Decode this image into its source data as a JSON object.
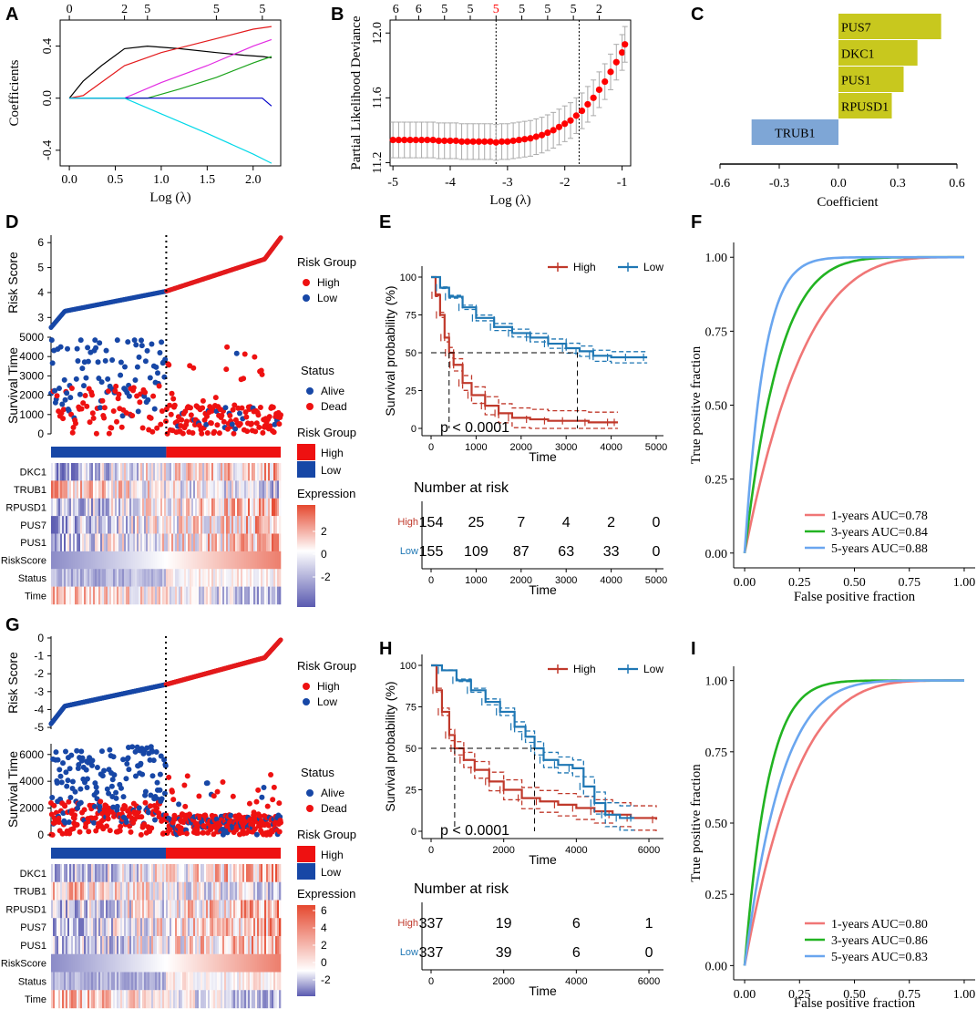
{
  "figure": {
    "colors": {
      "red": "#e31a1c",
      "blue": "#1747a6",
      "km_red": "#c0392b",
      "km_blue": "#1f77b4",
      "olive": "#c8c81e",
      "steelblue": "#7ea6d6",
      "roc1": "#f07676",
      "roc3": "#22b322",
      "roc5": "#6aa6ef",
      "grey": "#aaaaaa",
      "heat_low": "#5a5ab0",
      "heat_mid": "#ffffff",
      "heat_high": "#e5482f"
    },
    "panel_labels": [
      "A",
      "B",
      "C",
      "D",
      "E",
      "F",
      "G",
      "H",
      "I"
    ]
  },
  "chart_data": [
    {
      "panel": "A",
      "type": "line",
      "title": "",
      "xlabel": "Log (λ)",
      "ylabel": "Coefficients",
      "xlim": [
        -0.1,
        2.3
      ],
      "ylim": [
        -0.52,
        0.6
      ],
      "xticks": [
        "0.0",
        "0.5",
        "1.0",
        "1.5",
        "2.0"
      ],
      "xtick_values": [
        0,
        0.5,
        1.0,
        1.5,
        2.0
      ],
      "yticks": [
        "-0.4",
        "0.0",
        "0.4"
      ],
      "ytick_values": [
        -0.4,
        0,
        0.4
      ],
      "top_ticks": [
        "0",
        "2",
        "5",
        "5",
        "5"
      ],
      "top_tick_values": [
        0,
        0.6,
        0.85,
        1.6,
        2.1
      ],
      "series": [
        {
          "name": "black",
          "color": "#000000",
          "x": [
            0,
            0.15,
            0.35,
            0.6,
            0.85,
            1.2,
            1.6,
            1.9,
            2.1,
            2.2
          ],
          "y": [
            0,
            0.13,
            0.25,
            0.38,
            0.4,
            0.38,
            0.35,
            0.33,
            0.32,
            0.31
          ]
        },
        {
          "name": "red",
          "color": "#e31a1c",
          "x": [
            0,
            0.15,
            0.6,
            1.0,
            1.5,
            2.0,
            2.2
          ],
          "y": [
            0,
            0.02,
            0.25,
            0.35,
            0.44,
            0.53,
            0.55
          ]
        },
        {
          "name": "magenta",
          "color": "#e22ae2",
          "x": [
            0,
            0.6,
            1.0,
            1.5,
            2.0,
            2.2
          ],
          "y": [
            0,
            0,
            0.12,
            0.25,
            0.4,
            0.45
          ]
        },
        {
          "name": "green",
          "color": "#1aa31a",
          "x": [
            0,
            0.85,
            1.2,
            1.6,
            2.0,
            2.2
          ],
          "y": [
            0,
            0,
            0.07,
            0.16,
            0.27,
            0.32
          ]
        },
        {
          "name": "blue",
          "color": "#0000c8",
          "x": [
            0,
            2.1,
            2.2
          ],
          "y": [
            0,
            0,
            -0.06
          ]
        },
        {
          "name": "cyan",
          "color": "#00d8e8",
          "x": [
            0,
            0.6,
            1.0,
            1.5,
            2.0,
            2.2
          ],
          "y": [
            0,
            0,
            -0.12,
            -0.27,
            -0.43,
            -0.5
          ]
        }
      ]
    },
    {
      "panel": "B",
      "type": "scatter",
      "title": "",
      "xlabel": "Log (λ)",
      "ylabel": "Partial Likelihood Deviance",
      "xlim": [
        -5.05,
        -0.85
      ],
      "ylim": [
        11.18,
        12.08
      ],
      "xticks": [
        "-5",
        "-4",
        "-3",
        "-2",
        "-1"
      ],
      "xtick_values": [
        -5,
        -4,
        -3,
        -2,
        -1
      ],
      "yticks": [
        "11.2",
        "11.6",
        "12.0"
      ],
      "ytick_values": [
        11.2,
        11.6,
        12.0
      ],
      "top_ticks": [
        "6",
        "6",
        "5",
        "5",
        "5",
        "5",
        "5",
        "5",
        "2"
      ],
      "top_tick_values": [
        -4.95,
        -4.55,
        -4.1,
        -3.65,
        -3.2,
        -2.75,
        -2.3,
        -1.85,
        -1.4
      ],
      "top_tick_highlight_index": 4,
      "vlines": [
        -3.2,
        -1.75
      ],
      "x": [
        -5,
        -4.9,
        -4.8,
        -4.7,
        -4.6,
        -4.5,
        -4.4,
        -4.3,
        -4.2,
        -4.1,
        -4.0,
        -3.9,
        -3.8,
        -3.7,
        -3.6,
        -3.5,
        -3.4,
        -3.3,
        -3.2,
        -3.1,
        -3.0,
        -2.9,
        -2.8,
        -2.7,
        -2.6,
        -2.5,
        -2.4,
        -2.3,
        -2.2,
        -2.1,
        -2.0,
        -1.9,
        -1.8,
        -1.7,
        -1.6,
        -1.5,
        -1.4,
        -1.3,
        -1.2,
        -1.1,
        -1.0,
        -0.95
      ],
      "y": [
        11.34,
        11.34,
        11.34,
        11.34,
        11.34,
        11.34,
        11.34,
        11.34,
        11.335,
        11.335,
        11.335,
        11.335,
        11.33,
        11.33,
        11.33,
        11.33,
        11.33,
        11.33,
        11.325,
        11.33,
        11.33,
        11.335,
        11.34,
        11.345,
        11.35,
        11.36,
        11.37,
        11.385,
        11.4,
        11.42,
        11.44,
        11.46,
        11.49,
        11.52,
        11.56,
        11.6,
        11.65,
        11.7,
        11.76,
        11.82,
        11.88,
        11.93
      ],
      "err": [
        0.11,
        0.11,
        0.11,
        0.11,
        0.11,
        0.11,
        0.11,
        0.11,
        0.11,
        0.11,
        0.11,
        0.11,
        0.11,
        0.11,
        0.11,
        0.11,
        0.11,
        0.11,
        0.11,
        0.11,
        0.11,
        0.11,
        0.11,
        0.11,
        0.11,
        0.11,
        0.11,
        0.11,
        0.11,
        0.11,
        0.11,
        0.11,
        0.11,
        0.11,
        0.11,
        0.11,
        0.11,
        0.11,
        0.11,
        0.11,
        0.11,
        0.11
      ]
    },
    {
      "panel": "C",
      "type": "bar",
      "orientation": "horizontal",
      "xlabel": "Coefficient",
      "xlim": [
        -0.6,
        0.6
      ],
      "xticks": [
        "-0.6",
        "-0.3",
        "0.0",
        "0.3",
        "0.6"
      ],
      "xtick_values": [
        -0.6,
        -0.3,
        0,
        0.3,
        0.6
      ],
      "categories": [
        "PUS7",
        "DKC1",
        "PUS1",
        "RPUSD1",
        "TRUB1"
      ],
      "values": [
        0.52,
        0.4,
        0.33,
        0.27,
        -0.44
      ]
    },
    {
      "panel": "D",
      "type": "scatter",
      "ylabel_top": "Risk Score",
      "ylabel_mid": "Survival Time",
      "risk_yticks": [
        "3",
        "4",
        "5",
        "6"
      ],
      "risk_ytick_values": [
        3,
        4,
        5,
        6
      ],
      "risk_ylim": [
        2.5,
        6.3
      ],
      "risk_range": [
        2.6,
        6.2
      ],
      "risk_cutoff": 4.05,
      "surv_yticks": [
        "0",
        "1000",
        "2000",
        "3000",
        "4000",
        "5000"
      ],
      "surv_ytick_values": [
        0,
        1000,
        2000,
        3000,
        4000,
        5000
      ],
      "surv_ylim": [
        0,
        5000
      ],
      "n": 309,
      "n_high": 154,
      "legend_risk_title": "Risk Group",
      "legend_risk": [
        "High",
        "Low"
      ],
      "legend_status_title": "Status",
      "legend_status": [
        "Alive",
        "Dead"
      ],
      "legend_group_title": "Risk Group",
      "legend_group": [
        "High",
        "Low"
      ],
      "legend_expr_title": "Expression",
      "legend_expr_ticks": [
        "2",
        "0",
        "-2"
      ],
      "heat_rows": [
        "DKC1",
        "TRUB1",
        "RPUSD1",
        "PUS7",
        "PUS1",
        "RiskScore",
        "Status",
        "Time"
      ]
    },
    {
      "panel": "E",
      "type": "line",
      "ylabel": "Survival probability (%)",
      "xlabel": "Time",
      "xlim": [
        0,
        5000
      ],
      "ylim": [
        0,
        100
      ],
      "xticks": [
        "0",
        "1000",
        "2000",
        "3000",
        "4000",
        "5000"
      ],
      "xtick_values": [
        0,
        1000,
        2000,
        3000,
        4000,
        5000
      ],
      "yticks": [
        "0",
        "25",
        "50",
        "75",
        "100"
      ],
      "ytick_values": [
        0,
        25,
        50,
        75,
        100
      ],
      "pvalue": "p < 0.0001",
      "legend": [
        "High",
        "Low"
      ],
      "median_high": 400,
      "median_low": 3250,
      "series": [
        {
          "name": "High",
          "x": [
            0,
            100,
            200,
            300,
            400,
            500,
            700,
            900,
            1200,
            1500,
            1800,
            2200,
            2600,
            3000,
            3500,
            4000,
            4150
          ],
          "y": [
            100,
            88,
            75,
            60,
            50,
            42,
            30,
            22,
            15,
            10,
            7,
            6,
            5,
            5,
            4,
            4,
            4
          ]
        },
        {
          "name": "Low",
          "x": [
            0,
            200,
            400,
            700,
            1000,
            1400,
            1800,
            2200,
            2600,
            3000,
            3300,
            3600,
            4000,
            4400,
            4800
          ],
          "y": [
            100,
            93,
            87,
            80,
            73,
            67,
            63,
            60,
            56,
            53,
            51,
            48,
            47,
            47,
            47
          ]
        }
      ],
      "risk_table_title": "Number at risk",
      "risk_table_times": [
        "0",
        "1000",
        "2000",
        "3000",
        "4000",
        "5000"
      ],
      "risk_table_time_values": [
        0,
        1000,
        2000,
        3000,
        4000,
        5000
      ],
      "risk_table": [
        {
          "group": "High",
          "counts": [
            "154",
            "25",
            "7",
            "4",
            "2",
            "0"
          ]
        },
        {
          "group": "Low",
          "counts": [
            "155",
            "109",
            "87",
            "63",
            "33",
            "0"
          ]
        }
      ]
    },
    {
      "panel": "F",
      "type": "line",
      "xlabel": "False positive fraction",
      "ylabel": "True positive fraction",
      "xticks": [
        "0.00",
        "0.25",
        "0.50",
        "0.75",
        "1.00"
      ],
      "xtick_values": [
        0,
        0.25,
        0.5,
        0.75,
        1
      ],
      "yticks": [
        "0.00",
        "0.25",
        "0.50",
        "0.75",
        "1.00"
      ],
      "ytick_values": [
        0,
        0.25,
        0.5,
        0.75,
        1
      ],
      "series": [
        {
          "name": "1-years",
          "label": "1-years  AUC=0.78",
          "auc": 0.78
        },
        {
          "name": "3-years",
          "label": "3-years  AUC=0.84",
          "auc": 0.84
        },
        {
          "name": "5-years",
          "label": "5-years  AUC=0.88",
          "auc": 0.88
        }
      ]
    },
    {
      "panel": "G",
      "type": "scatter",
      "ylabel_top": "Risk Score",
      "ylabel_mid": "Survival Time",
      "risk_yticks": [
        "0",
        "-1",
        "-2",
        "-3",
        "-4",
        "-5"
      ],
      "risk_ytick_values": [
        0,
        -1,
        -2,
        -3,
        -4,
        -5
      ],
      "risk_ylim": [
        -5.1,
        0.1
      ],
      "risk_range": [
        -4.8,
        -0.1
      ],
      "risk_cutoff": -2.6,
      "surv_yticks": [
        "0",
        "2000",
        "4000",
        "6000"
      ],
      "surv_ytick_values": [
        0,
        2000,
        4000,
        6000
      ],
      "surv_ylim": [
        0,
        6800
      ],
      "n": 674,
      "n_high": 337,
      "legend_risk_title": "Risk Group",
      "legend_risk": [
        "High",
        "Low"
      ],
      "legend_status_title": "Status",
      "legend_status": [
        "Alive",
        "Dead"
      ],
      "legend_group_title": "Risk Group",
      "legend_group": [
        "High",
        "Low"
      ],
      "legend_expr_title": "Expression",
      "legend_expr_ticks": [
        "6",
        "4",
        "2",
        "0",
        "-2"
      ],
      "heat_rows": [
        "DKC1",
        "TRUB1",
        "RPUSD1",
        "PUS7",
        "PUS1",
        "RiskScore",
        "Status",
        "Time"
      ]
    },
    {
      "panel": "H",
      "type": "line",
      "ylabel": "Survival probability (%)",
      "xlabel": "Time",
      "xlim": [
        0,
        6200
      ],
      "ylim": [
        0,
        100
      ],
      "xticks": [
        "0",
        "2000",
        "4000",
        "6000"
      ],
      "xtick_values": [
        0,
        2000,
        4000,
        6000
      ],
      "yticks": [
        "0",
        "25",
        "50",
        "75",
        "100"
      ],
      "ytick_values": [
        0,
        25,
        50,
        75,
        100
      ],
      "pvalue": "p < 0.0001",
      "legend": [
        "High",
        "Low"
      ],
      "median_high": 650,
      "median_low": 2850,
      "series": [
        {
          "name": "High",
          "x": [
            0,
            150,
            300,
            500,
            650,
            900,
            1200,
            1600,
            2000,
            2500,
            3000,
            3500,
            4000,
            4500,
            5000,
            5500,
            6200
          ],
          "y": [
            100,
            85,
            72,
            58,
            50,
            43,
            37,
            30,
            25,
            20,
            18,
            16,
            14,
            12,
            10,
            8,
            7
          ]
        },
        {
          "name": "Low",
          "x": [
            0,
            300,
            700,
            1100,
            1500,
            1900,
            2300,
            2600,
            2850,
            3100,
            3500,
            3900,
            4200,
            4500,
            4800,
            5200,
            5600
          ],
          "y": [
            100,
            97,
            91,
            85,
            78,
            72,
            63,
            57,
            50,
            43,
            40,
            38,
            27,
            17,
            10,
            8,
            8
          ]
        }
      ],
      "risk_table_title": "Number at risk",
      "risk_table_times": [
        "0",
        "2000",
        "4000",
        "6000"
      ],
      "risk_table_time_values": [
        0,
        2000,
        4000,
        6000
      ],
      "risk_table": [
        {
          "group": "High",
          "counts": [
            "337",
            "19",
            "6",
            "1"
          ]
        },
        {
          "group": "Low",
          "counts": [
            "337",
            "39",
            "6",
            "0"
          ]
        }
      ]
    },
    {
      "panel": "I",
      "type": "line",
      "xlabel": "False positive fraction",
      "ylabel": "True positive fraction",
      "xticks": [
        "0.00",
        "0.25",
        "0.50",
        "0.75",
        "1.00"
      ],
      "xtick_values": [
        0,
        0.25,
        0.5,
        0.75,
        1
      ],
      "yticks": [
        "0.00",
        "0.25",
        "0.50",
        "0.75",
        "1.00"
      ],
      "ytick_values": [
        0,
        0.25,
        0.5,
        0.75,
        1
      ],
      "series": [
        {
          "name": "1-years",
          "label": "1-years  AUC=0.80",
          "auc": 0.8
        },
        {
          "name": "3-years",
          "label": "3-years  AUC=0.86",
          "auc": 0.86
        },
        {
          "name": "5-years",
          "label": "5-years  AUC=0.83",
          "auc": 0.83
        }
      ]
    }
  ]
}
